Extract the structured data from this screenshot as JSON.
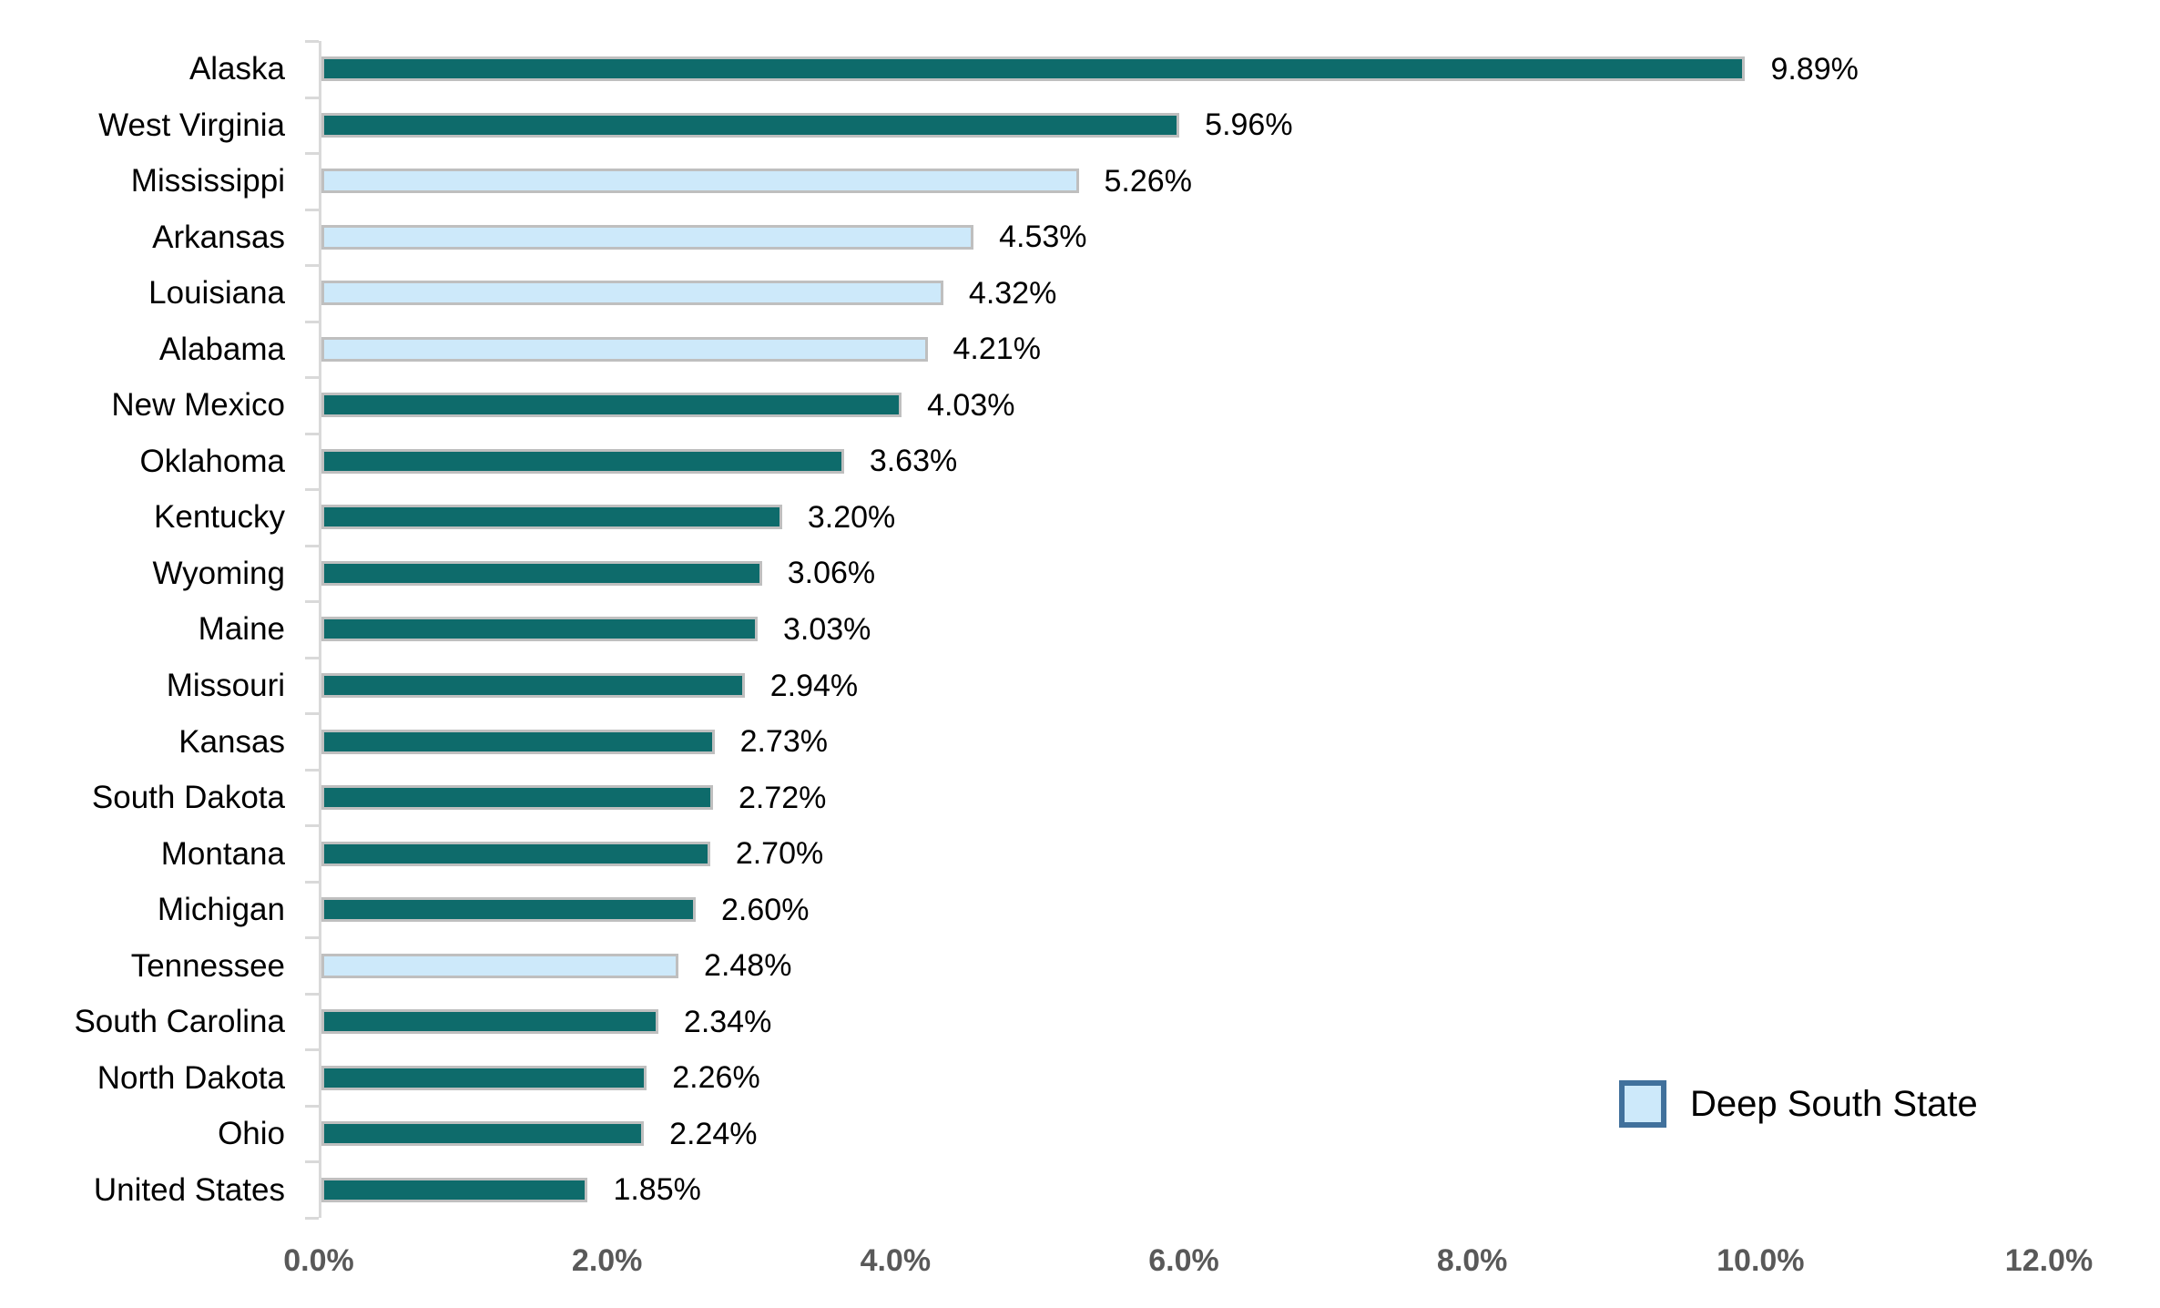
{
  "chart_data": {
    "type": "bar",
    "orientation": "horizontal",
    "title": "",
    "xlabel": "",
    "ylabel": "",
    "categories": [
      "Alaska",
      "West Virginia",
      "Mississippi",
      "Arkansas",
      "Louisiana",
      "Alabama",
      "New Mexico",
      "Oklahoma",
      "Kentucky",
      "Wyoming",
      "Maine",
      "Missouri",
      "Kansas",
      "South Dakota",
      "Montana",
      "Michigan",
      "Tennessee",
      "South Carolina",
      "North Dakota",
      "Ohio",
      "United States"
    ],
    "values": [
      9.89,
      5.96,
      5.26,
      4.53,
      4.32,
      4.21,
      4.03,
      3.63,
      3.2,
      3.06,
      3.03,
      2.94,
      2.73,
      2.72,
      2.7,
      2.6,
      2.48,
      2.34,
      2.26,
      2.24,
      1.85
    ],
    "value_labels": [
      "9.89%",
      "5.96%",
      "5.26%",
      "4.53%",
      "4.32%",
      "4.21%",
      "4.03%",
      "3.63%",
      "3.20%",
      "3.06%",
      "3.03%",
      "2.94%",
      "2.73%",
      "2.72%",
      "2.70%",
      "2.60%",
      "2.48%",
      "2.34%",
      "2.26%",
      "2.24%",
      "1.85%"
    ],
    "is_deep_south": [
      false,
      false,
      true,
      true,
      true,
      true,
      false,
      false,
      false,
      false,
      false,
      false,
      false,
      false,
      false,
      false,
      true,
      false,
      false,
      false,
      false
    ],
    "x_ticks": [
      "0.0%",
      "2.0%",
      "4.0%",
      "6.0%",
      "8.0%",
      "10.0%",
      "12.0%"
    ],
    "xlim": [
      0,
      12
    ],
    "grid": false,
    "legend": {
      "position": "bottom-right",
      "label": "Deep South State"
    },
    "colors": {
      "bar_default": "#0E6B6B",
      "bar_deep_south": "#CDE9FA",
      "bar_border": "#BFBFBF",
      "axis_line": "#D9D9D9",
      "axis_tick_label": "#595959",
      "legend_swatch_fill": "#CDE9FA",
      "legend_swatch_border": "#41719C",
      "text": "#000000"
    }
  }
}
